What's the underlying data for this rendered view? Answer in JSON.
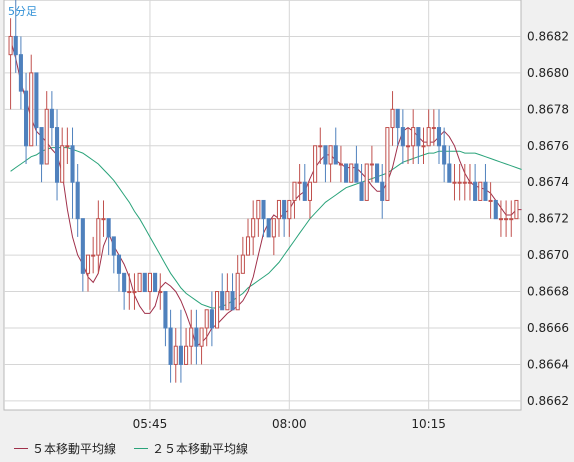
{
  "timeframe_label": "5分足",
  "chart_data": {
    "type": "candlestick",
    "ylim": [
      0.86615,
      0.8684
    ],
    "y_ticks": [
      "0.8662",
      "0.8664",
      "0.8666",
      "0.8668",
      "0.8670",
      "0.8672",
      "0.8674",
      "0.8676",
      "0.8678",
      "0.8680",
      "0.8682"
    ],
    "x_ticks": [
      {
        "label": "05:45",
        "index": 27
      },
      {
        "label": "08:00",
        "index": 54
      },
      {
        "label": "10:15",
        "index": 81
      }
    ],
    "grid": true,
    "colors": {
      "up": "#c0504d",
      "down": "#4f81bd",
      "ma5": "#a0304a",
      "ma25": "#2aa37a",
      "grid": "#d6d6d6"
    },
    "series": [
      {
        "name": "５本移動平均線",
        "color": "#a0304a",
        "values": [
          0.86818,
          0.86808,
          0.86795,
          0.86785,
          0.86775,
          0.86768,
          0.86765,
          0.86762,
          0.86758,
          0.86755,
          0.86745,
          0.86725,
          0.8671,
          0.867,
          0.86695,
          0.86688,
          0.86685,
          0.8669,
          0.86705,
          0.86712,
          0.86705,
          0.867,
          0.86695,
          0.86688,
          0.86678,
          0.86672,
          0.86668,
          0.86668,
          0.86672,
          0.86682,
          0.86685,
          0.86683,
          0.8668,
          0.86675,
          0.86668,
          0.8666,
          0.8665,
          0.86652,
          0.86655,
          0.8666,
          0.86662,
          0.86665,
          0.86668,
          0.8667,
          0.86672,
          0.86675,
          0.8668,
          0.86688,
          0.867,
          0.86712,
          0.86718,
          0.86722,
          0.8672,
          0.86723,
          0.86725,
          0.8673,
          0.86733,
          0.86735,
          0.86742,
          0.86748,
          0.86752,
          0.86755,
          0.86755,
          0.86752,
          0.8675,
          0.86748,
          0.86748,
          0.86748,
          0.86745,
          0.86742,
          0.86738,
          0.86735,
          0.86735,
          0.8674,
          0.86748,
          0.8676,
          0.86768,
          0.8677,
          0.86768,
          0.86765,
          0.86762,
          0.86762,
          0.86762,
          0.86765,
          0.86768,
          0.86765,
          0.8676,
          0.86752,
          0.86745,
          0.8674,
          0.86738,
          0.86737,
          0.86736,
          0.86734,
          0.8673,
          0.86726,
          0.86722,
          0.86722,
          0.86725,
          0.86725
        ]
      },
      {
        "name": "２５本移動平均線",
        "color": "#2aa37a",
        "values": [
          0.86746,
          0.86748,
          0.8675,
          0.86752,
          0.86754,
          0.86755,
          0.86757,
          0.86758,
          0.86759,
          0.86759,
          0.86759,
          0.86759,
          0.86758,
          0.86757,
          0.86756,
          0.86754,
          0.86752,
          0.8675,
          0.86747,
          0.86744,
          0.86741,
          0.86737,
          0.86733,
          0.86729,
          0.86724,
          0.8672,
          0.86715,
          0.8671,
          0.86705,
          0.867,
          0.86695,
          0.8669,
          0.86686,
          0.86682,
          0.86679,
          0.86677,
          0.86675,
          0.86673,
          0.86672,
          0.86671,
          0.86671,
          0.86672,
          0.86673,
          0.86675,
          0.86677,
          0.86679,
          0.86682,
          0.86684,
          0.86686,
          0.86688,
          0.8669,
          0.86693,
          0.86696,
          0.867,
          0.86704,
          0.86708,
          0.86712,
          0.86716,
          0.8672,
          0.86723,
          0.86726,
          0.86729,
          0.86731,
          0.86733,
          0.86735,
          0.86737,
          0.86738,
          0.86739,
          0.8674,
          0.86741,
          0.86742,
          0.86743,
          0.86744,
          0.86745,
          0.86747,
          0.86749,
          0.86751,
          0.86752,
          0.86753,
          0.86754,
          0.86755,
          0.86756,
          0.86756,
          0.86757,
          0.86757,
          0.86757,
          0.86757,
          0.86757,
          0.86756,
          0.86756,
          0.86756,
          0.86755,
          0.86754,
          0.86753,
          0.86752,
          0.86751,
          0.8675,
          0.86749,
          0.86748,
          0.86747
        ]
      },
      {
        "name": "candles",
        "ohlc": [
          [
            0.8681,
            0.8683,
            0.8678,
            0.8682
          ],
          [
            0.8682,
            0.8684,
            0.868,
            0.8681
          ],
          [
            0.8681,
            0.8682,
            0.8678,
            0.8679
          ],
          [
            0.8679,
            0.868,
            0.8675,
            0.8676
          ],
          [
            0.8676,
            0.8681,
            0.8676,
            0.868
          ],
          [
            0.868,
            0.868,
            0.8676,
            0.8677
          ],
          [
            0.8677,
            0.8677,
            0.8674,
            0.8675
          ],
          [
            0.8675,
            0.8679,
            0.8675,
            0.8678
          ],
          [
            0.8678,
            0.8679,
            0.8676,
            0.8677
          ],
          [
            0.8677,
            0.8678,
            0.8673,
            0.8674
          ],
          [
            0.8674,
            0.8677,
            0.8674,
            0.8676
          ],
          [
            0.8676,
            0.8677,
            0.8675,
            0.8676
          ],
          [
            0.8676,
            0.8677,
            0.8672,
            0.8674
          ],
          [
            0.8674,
            0.8675,
            0.8671,
            0.8672
          ],
          [
            0.8672,
            0.8672,
            0.8668,
            0.8669
          ],
          [
            0.8669,
            0.867,
            0.8668,
            0.867
          ],
          [
            0.867,
            0.8671,
            0.8669,
            0.867
          ],
          [
            0.867,
            0.8673,
            0.8669,
            0.8672
          ],
          [
            0.8672,
            0.8673,
            0.8671,
            0.8672
          ],
          [
            0.8672,
            0.8672,
            0.867,
            0.8671
          ],
          [
            0.8671,
            0.8671,
            0.8669,
            0.867
          ],
          [
            0.867,
            0.867,
            0.8668,
            0.8669
          ],
          [
            0.8669,
            0.8669,
            0.8667,
            0.8668
          ],
          [
            0.8668,
            0.8669,
            0.8667,
            0.8668
          ],
          [
            0.8668,
            0.8669,
            0.8667,
            0.8668
          ],
          [
            0.8668,
            0.8669,
            0.8668,
            0.8669
          ],
          [
            0.8669,
            0.8669,
            0.8668,
            0.8668
          ],
          [
            0.8668,
            0.8669,
            0.8667,
            0.8669
          ],
          [
            0.8669,
            0.8669,
            0.8668,
            0.8668
          ],
          [
            0.8668,
            0.8669,
            0.8667,
            0.8668
          ],
          [
            0.8668,
            0.8668,
            0.8665,
            0.8666
          ],
          [
            0.8666,
            0.8667,
            0.8663,
            0.8664
          ],
          [
            0.8664,
            0.8666,
            0.8663,
            0.8665
          ],
          [
            0.8665,
            0.8667,
            0.8663,
            0.8664
          ],
          [
            0.8664,
            0.8666,
            0.8664,
            0.8665
          ],
          [
            0.8665,
            0.8667,
            0.8664,
            0.8666
          ],
          [
            0.8666,
            0.8667,
            0.8664,
            0.8665
          ],
          [
            0.8665,
            0.8666,
            0.8664,
            0.8666
          ],
          [
            0.8666,
            0.8667,
            0.8665,
            0.8667
          ],
          [
            0.8667,
            0.8668,
            0.8665,
            0.8666
          ],
          [
            0.8666,
            0.8668,
            0.8666,
            0.8668
          ],
          [
            0.8668,
            0.8669,
            0.8667,
            0.8667
          ],
          [
            0.8667,
            0.8669,
            0.8667,
            0.8668
          ],
          [
            0.8668,
            0.8669,
            0.8667,
            0.8667
          ],
          [
            0.8667,
            0.867,
            0.8667,
            0.8669
          ],
          [
            0.8669,
            0.8671,
            0.8669,
            0.867
          ],
          [
            0.867,
            0.8672,
            0.867,
            0.8671
          ],
          [
            0.8671,
            0.8673,
            0.867,
            0.8672
          ],
          [
            0.8672,
            0.8673,
            0.8671,
            0.8673
          ],
          [
            0.8673,
            0.8673,
            0.8671,
            0.8672
          ],
          [
            0.8672,
            0.8672,
            0.8671,
            0.8671
          ],
          [
            0.8671,
            0.8672,
            0.867,
            0.8672
          ],
          [
            0.8672,
            0.8673,
            0.8671,
            0.8673
          ],
          [
            0.8673,
            0.8673,
            0.8671,
            0.8672
          ],
          [
            0.8672,
            0.8673,
            0.8671,
            0.8673
          ],
          [
            0.8673,
            0.8674,
            0.8672,
            0.8674
          ],
          [
            0.8674,
            0.8675,
            0.8673,
            0.8674
          ],
          [
            0.8674,
            0.8675,
            0.8673,
            0.8673
          ],
          [
            0.8673,
            0.8674,
            0.8672,
            0.8674
          ],
          [
            0.8674,
            0.8676,
            0.8674,
            0.8676
          ],
          [
            0.8676,
            0.8677,
            0.8675,
            0.8676
          ],
          [
            0.8676,
            0.8676,
            0.8674,
            0.8675
          ],
          [
            0.8675,
            0.8676,
            0.8674,
            0.8676
          ],
          [
            0.8676,
            0.8677,
            0.8675,
            0.8675
          ],
          [
            0.8675,
            0.8676,
            0.8674,
            0.8675
          ],
          [
            0.8675,
            0.8675,
            0.8674,
            0.8674
          ],
          [
            0.8674,
            0.8675,
            0.8674,
            0.8675
          ],
          [
            0.8675,
            0.8676,
            0.8674,
            0.8674
          ],
          [
            0.8674,
            0.8675,
            0.8673,
            0.8673
          ],
          [
            0.8673,
            0.8675,
            0.8673,
            0.8675
          ],
          [
            0.8675,
            0.8676,
            0.8674,
            0.8675
          ],
          [
            0.8675,
            0.8675,
            0.8674,
            0.8674
          ],
          [
            0.8674,
            0.8675,
            0.8672,
            0.8673
          ],
          [
            0.8673,
            0.8677,
            0.8673,
            0.8677
          ],
          [
            0.8677,
            0.8679,
            0.8676,
            0.8678
          ],
          [
            0.8678,
            0.8678,
            0.8676,
            0.8677
          ],
          [
            0.8677,
            0.8678,
            0.8675,
            0.8676
          ],
          [
            0.8676,
            0.8677,
            0.8675,
            0.8676
          ],
          [
            0.8676,
            0.8678,
            0.8675,
            0.8677
          ],
          [
            0.8677,
            0.8677,
            0.8675,
            0.8676
          ],
          [
            0.8676,
            0.8677,
            0.8675,
            0.8676
          ],
          [
            0.8676,
            0.8678,
            0.8676,
            0.8677
          ],
          [
            0.8677,
            0.8678,
            0.8676,
            0.8677
          ],
          [
            0.8677,
            0.8678,
            0.8675,
            0.8676
          ],
          [
            0.8676,
            0.8677,
            0.8674,
            0.8675
          ],
          [
            0.8675,
            0.8676,
            0.8674,
            0.8674
          ],
          [
            0.8674,
            0.8675,
            0.8673,
            0.8674
          ],
          [
            0.8674,
            0.8675,
            0.8673,
            0.8674
          ],
          [
            0.8674,
            0.8675,
            0.8673,
            0.8674
          ],
          [
            0.8674,
            0.8675,
            0.8673,
            0.8674
          ],
          [
            0.8674,
            0.8675,
            0.8673,
            0.8673
          ],
          [
            0.8673,
            0.8674,
            0.8673,
            0.8674
          ],
          [
            0.8674,
            0.8675,
            0.8673,
            0.8673
          ],
          [
            0.8673,
            0.8674,
            0.8672,
            0.8673
          ],
          [
            0.8673,
            0.8673,
            0.8672,
            0.8672
          ],
          [
            0.8672,
            0.8673,
            0.8671,
            0.8672
          ],
          [
            0.8672,
            0.8673,
            0.8671,
            0.8672
          ],
          [
            0.8672,
            0.8673,
            0.8671,
            0.8672
          ],
          [
            0.8672,
            0.8673,
            0.8672,
            0.8673
          ]
        ]
      }
    ]
  }
}
